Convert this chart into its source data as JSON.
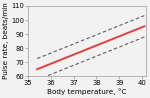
{
  "title": "",
  "xlabel": "Body temperature, °C",
  "ylabel": "Pulse rate, beats/min",
  "xlim": [
    35.3,
    40.15
  ],
  "ylim": [
    60,
    110
  ],
  "xticks": [
    35,
    36,
    37,
    38,
    39,
    40
  ],
  "yticks": [
    60,
    70,
    80,
    90,
    100,
    110
  ],
  "x_start": 35.4,
  "x_end": 40.1,
  "red_line_slope": 6.5,
  "red_line_intercept": -165.1,
  "ci_upper_slope": 6.5,
  "ci_upper_intercept": -157.5,
  "ci_lower_slope": 6.5,
  "ci_lower_intercept": -172.7,
  "red_color": "#e04040",
  "ci_color": "#666666",
  "background_color": "#f2f2f2",
  "linewidth_red": 1.4,
  "linewidth_ci": 0.85,
  "font_size": 5.2
}
